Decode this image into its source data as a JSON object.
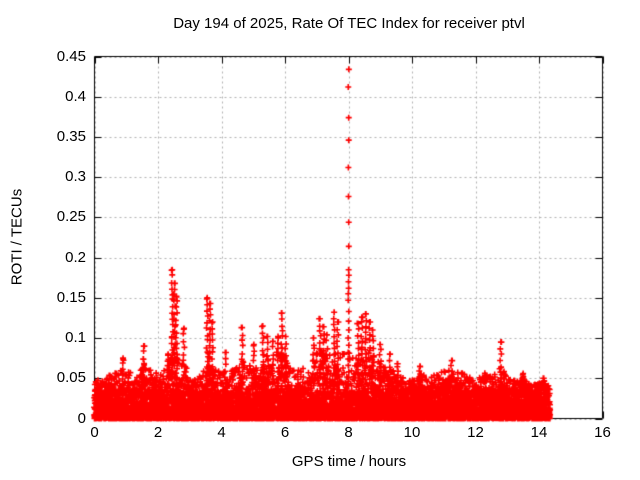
{
  "chart_data": {
    "type": "scatter",
    "title": "Day 194 of 2025, Rate Of TEC Index for receiver ptvl",
    "xlabel": "GPS time / hours",
    "ylabel": "ROTI / TECUs",
    "xlim": [
      0,
      16
    ],
    "ylim": [
      0,
      0.45
    ],
    "xticks": [
      0,
      2,
      4,
      6,
      8,
      10,
      12,
      14,
      16
    ],
    "xtick_labels": [
      "0",
      "2",
      "4",
      "6",
      "8",
      "10",
      "12",
      "14",
      "16"
    ],
    "yticks": [
      0,
      0.05,
      0.1,
      0.15,
      0.2,
      0.25,
      0.3,
      0.35,
      0.4,
      0.45
    ],
    "ytick_labels": [
      "0",
      "0.05",
      "0.1",
      "0.15",
      "0.2",
      "0.25",
      "0.3",
      "0.35",
      "0.4",
      "0.45"
    ],
    "grid": "dashed",
    "legend": "none",
    "marker": "plus",
    "marker_color": "#ff0000",
    "grid_color": "#b0b0b0",
    "axis_color": "#000000",
    "background_color": "#ffffff",
    "data_x_start": 0,
    "data_x_end": 14.35,
    "seed": 194,
    "noise_core_max": 0.032,
    "dense_envelope": [
      [
        0,
        0.048
      ],
      [
        0.2,
        0.05
      ],
      [
        0.4,
        0.052
      ],
      [
        0.6,
        0.058
      ],
      [
        0.75,
        0.065
      ],
      [
        0.9,
        0.075
      ],
      [
        1.0,
        0.062
      ],
      [
        1.2,
        0.055
      ],
      [
        1.4,
        0.052
      ],
      [
        1.55,
        0.075
      ],
      [
        1.7,
        0.062
      ],
      [
        1.9,
        0.056
      ],
      [
        2.1,
        0.06
      ],
      [
        2.3,
        0.072
      ],
      [
        2.45,
        0.08
      ],
      [
        2.6,
        0.075
      ],
      [
        2.8,
        0.068
      ],
      [
        3.0,
        0.06
      ],
      [
        3.2,
        0.056
      ],
      [
        3.4,
        0.06
      ],
      [
        3.6,
        0.07
      ],
      [
        3.8,
        0.065
      ],
      [
        4.0,
        0.056
      ],
      [
        4.2,
        0.06
      ],
      [
        4.4,
        0.062
      ],
      [
        4.6,
        0.068
      ],
      [
        4.8,
        0.07
      ],
      [
        5.0,
        0.066
      ],
      [
        5.2,
        0.07
      ],
      [
        5.35,
        0.08
      ],
      [
        5.5,
        0.075
      ],
      [
        5.65,
        0.08
      ],
      [
        5.8,
        0.085
      ],
      [
        5.95,
        0.08
      ],
      [
        6.1,
        0.07
      ],
      [
        6.3,
        0.062
      ],
      [
        6.5,
        0.066
      ],
      [
        6.7,
        0.07
      ],
      [
        6.9,
        0.078
      ],
      [
        7.1,
        0.085
      ],
      [
        7.3,
        0.08
      ],
      [
        7.5,
        0.082
      ],
      [
        7.7,
        0.08
      ],
      [
        7.9,
        0.085
      ],
      [
        8.1,
        0.08
      ],
      [
        8.3,
        0.085
      ],
      [
        8.5,
        0.09
      ],
      [
        8.7,
        0.085
      ],
      [
        8.9,
        0.075
      ],
      [
        9.1,
        0.068
      ],
      [
        9.3,
        0.062
      ],
      [
        9.5,
        0.06
      ],
      [
        9.7,
        0.052
      ],
      [
        9.9,
        0.048
      ],
      [
        10.1,
        0.052
      ],
      [
        10.3,
        0.058
      ],
      [
        10.5,
        0.052
      ],
      [
        10.7,
        0.055
      ],
      [
        10.9,
        0.06
      ],
      [
        11.1,
        0.062
      ],
      [
        11.3,
        0.06
      ],
      [
        11.5,
        0.06
      ],
      [
        11.7,
        0.054
      ],
      [
        11.9,
        0.05
      ],
      [
        12.1,
        0.054
      ],
      [
        12.3,
        0.058
      ],
      [
        12.5,
        0.054
      ],
      [
        12.7,
        0.056
      ],
      [
        12.9,
        0.06
      ],
      [
        13.1,
        0.05
      ],
      [
        13.3,
        0.046
      ],
      [
        13.5,
        0.052
      ],
      [
        13.7,
        0.045
      ],
      [
        13.9,
        0.042
      ],
      [
        14.1,
        0.045
      ],
      [
        14.35,
        0.04
      ]
    ],
    "spikes": [
      [
        0.9,
        0.075
      ],
      [
        1.55,
        0.09
      ],
      [
        2.32,
        0.08
      ],
      [
        2.45,
        0.185
      ],
      [
        2.52,
        0.168
      ],
      [
        2.58,
        0.152
      ],
      [
        2.82,
        0.112
      ],
      [
        3.55,
        0.15
      ],
      [
        3.63,
        0.143
      ],
      [
        3.72,
        0.12
      ],
      [
        4.12,
        0.082
      ],
      [
        4.65,
        0.113
      ],
      [
        5.02,
        0.092
      ],
      [
        5.3,
        0.115
      ],
      [
        5.45,
        0.102
      ],
      [
        5.62,
        0.096
      ],
      [
        5.78,
        0.102
      ],
      [
        5.9,
        0.131
      ],
      [
        6.02,
        0.102
      ],
      [
        6.9,
        0.1
      ],
      [
        7.1,
        0.124
      ],
      [
        7.22,
        0.114
      ],
      [
        7.32,
        0.104
      ],
      [
        7.55,
        0.132
      ],
      [
        7.66,
        0.12
      ],
      [
        8.3,
        0.118
      ],
      [
        8.42,
        0.126
      ],
      [
        8.55,
        0.13
      ],
      [
        8.66,
        0.12
      ],
      [
        8.76,
        0.11
      ],
      [
        9.0,
        0.092
      ],
      [
        9.3,
        0.08
      ],
      [
        9.55,
        0.068
      ],
      [
        10.25,
        0.065
      ],
      [
        11.25,
        0.072
      ],
      [
        12.8,
        0.095
      ],
      [
        13.5,
        0.056
      ],
      [
        14.15,
        0.05
      ]
    ],
    "main_spike": {
      "x": 8.0,
      "points": [
        0.434,
        0.412,
        0.374,
        0.346,
        0.312,
        0.276,
        0.244,
        0.214,
        0.185,
        0.178,
        0.17,
        0.162,
        0.155,
        0.147,
        0.133,
        0.121,
        0.11,
        0.1,
        0.091,
        0.082,
        0.074,
        0.066,
        0.058,
        0.051
      ]
    }
  }
}
